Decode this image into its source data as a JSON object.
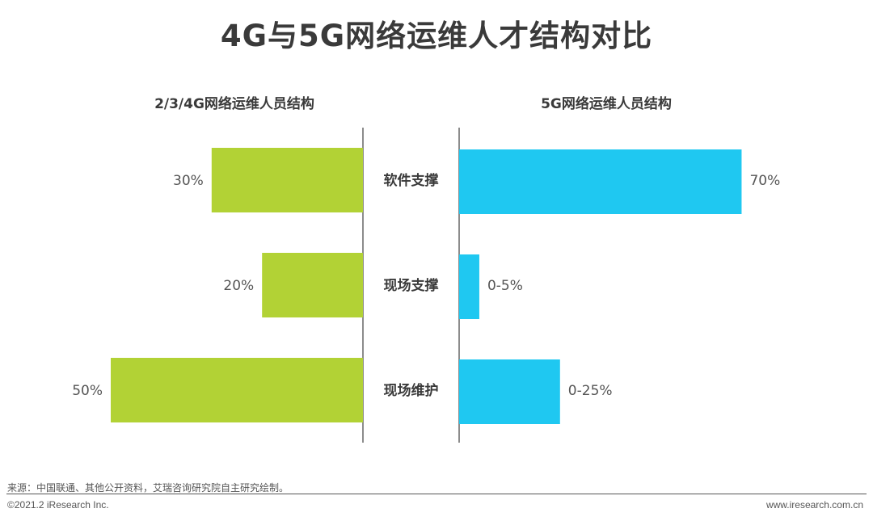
{
  "title": "4G与5G网络运维人才结构对比",
  "chart_data": [
    {
      "type": "bar",
      "title": "2/3/4G网络运维人员结构",
      "categories": [
        "软件支撑",
        "现场支撑",
        "现场维护"
      ],
      "values": [
        30,
        20,
        50
      ],
      "value_labels": [
        "30%",
        "20%",
        "50%"
      ],
      "unit": "%",
      "orientation": "horizontal",
      "direction": "leftward",
      "color": "#b2d235"
    },
    {
      "type": "bar",
      "title": "5G网络运维人员结构",
      "categories": [
        "软件支撑",
        "现场支撑",
        "现场维护"
      ],
      "values": [
        70,
        5,
        25
      ],
      "value_labels": [
        "70%",
        "0-5%",
        "0-25%"
      ],
      "unit": "%",
      "orientation": "horizontal",
      "direction": "rightward",
      "color": "#1fc8f1"
    }
  ],
  "footer": {
    "source": "来源：中国联通、其他公开资料，艾瑞咨询研究院自主研究绘制。",
    "copyright": "©2021.2 iResearch Inc.",
    "website": "www.iresearch.com.cn"
  }
}
